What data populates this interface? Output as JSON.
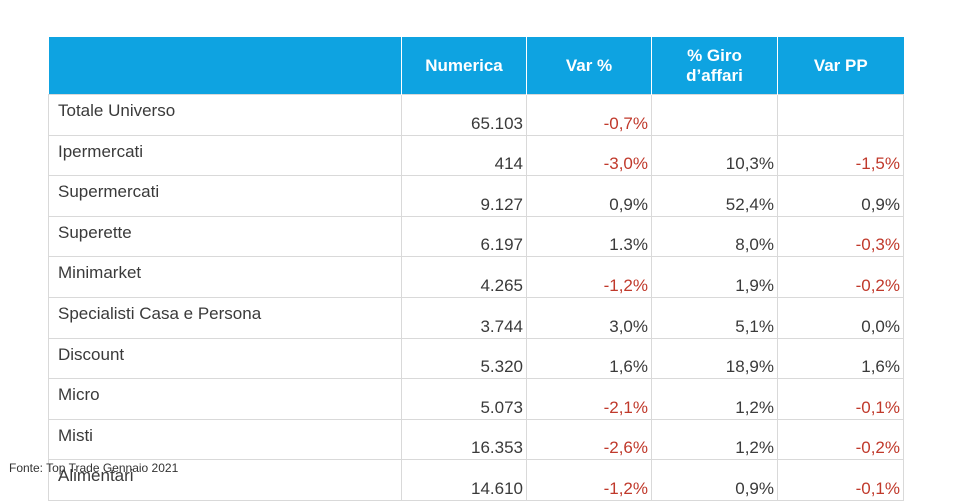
{
  "chart_data": {
    "type": "table",
    "columns": [
      "",
      "Numerica",
      "Var %",
      "% Giro d’affari",
      "Var PP"
    ],
    "rows": [
      {
        "label": "Totale Universo",
        "numerica": "65.103",
        "var_pct": "-0,7%",
        "giro": "",
        "var_pp": ""
      },
      {
        "label": "Ipermercati",
        "numerica": "414",
        "var_pct": "-3,0%",
        "giro": "10,3%",
        "var_pp": "-1,5%"
      },
      {
        "label": "Supermercati",
        "numerica": "9.127",
        "var_pct": "0,9%",
        "giro": "52,4%",
        "var_pp": "0,9%"
      },
      {
        "label": "Superette",
        "numerica": "6.197",
        "var_pct": "1.3%",
        "giro": "8,0%",
        "var_pp": "-0,3%"
      },
      {
        "label": "Minimarket",
        "numerica": "4.265",
        "var_pct": "-1,2%",
        "giro": "1,9%",
        "var_pp": "-0,2%"
      },
      {
        "label": "Specialisti Casa e Persona",
        "numerica": "3.744",
        "var_pct": "3,0%",
        "giro": "5,1%",
        "var_pp": "0,0%"
      },
      {
        "label": "Discount",
        "numerica": "5.320",
        "var_pct": "1,6%",
        "giro": "18,9%",
        "var_pp": "1,6%"
      },
      {
        "label": "Micro",
        "numerica": "5.073",
        "var_pct": "-2,1%",
        "giro": "1,2%",
        "var_pp": "-0,1%"
      },
      {
        "label": "Misti",
        "numerica": "16.353",
        "var_pct": "-2,6%",
        "giro": "1,2%",
        "var_pp": "-0,2%"
      },
      {
        "label": "Alimentari",
        "numerica": "14.610",
        "var_pct": "-1,2%",
        "giro": "0,9%",
        "var_pp": "-0,1%"
      }
    ],
    "source": "Fonte: Top Trade Gennaio 2021"
  },
  "colors": {
    "header_bg": "#0ea3e1",
    "header_text": "#ffffff",
    "negative_text": "#c0392b",
    "body_text": "#3a3a3a",
    "grid": "#d9d9d9"
  }
}
